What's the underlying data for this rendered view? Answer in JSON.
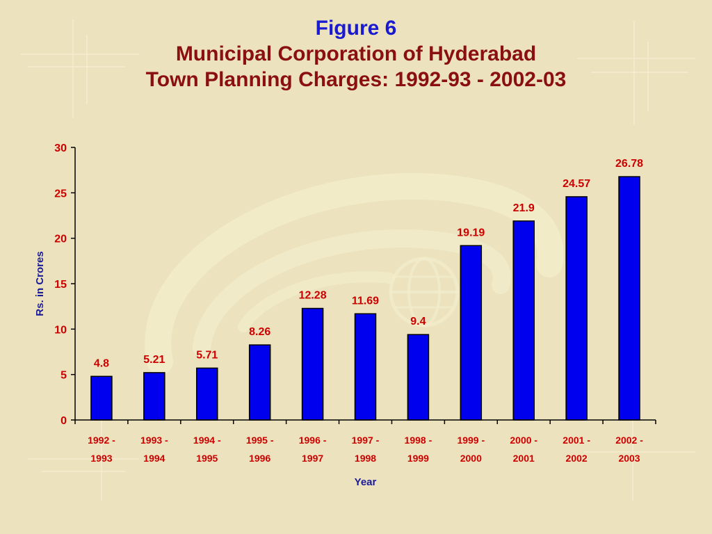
{
  "header": {
    "figure_label": "Figure 6",
    "title_line1": "Municipal Corporation of Hyderabad",
    "title_line2": "Town Planning Charges: 1992-93 - 2002-03"
  },
  "colors": {
    "background": "#ece2bd",
    "bar_fill": "#0000ee",
    "value_labels": "#cc0000",
    "axis_titles": "#1a1a99",
    "figure_label": "#1a1ad0",
    "title": "#8a1010"
  },
  "chart_data": {
    "type": "bar",
    "title": "Municipal Corporation of Hyderabad Town Planning Charges: 1992-93 - 2002-03",
    "xlabel": "Year",
    "ylabel": "Rs. in Crores",
    "ylim": [
      0,
      30
    ],
    "yticks": [
      0,
      5,
      10,
      15,
      20,
      25,
      30
    ],
    "grid": false,
    "legend": "none",
    "categories": [
      [
        "1992 -",
        "1993"
      ],
      [
        "1993 -",
        "1994"
      ],
      [
        "1994 -",
        "1995"
      ],
      [
        "1995 -",
        "1996"
      ],
      [
        "1996 -",
        "1997"
      ],
      [
        "1997 -",
        "1998"
      ],
      [
        "1998 -",
        "1999"
      ],
      [
        "1999 -",
        "2000"
      ],
      [
        "2000 -",
        "2001"
      ],
      [
        "2001 -",
        "2002"
      ],
      [
        "2002 -",
        "2003"
      ]
    ],
    "values": [
      4.8,
      5.21,
      5.71,
      8.26,
      12.28,
      11.69,
      9.4,
      19.19,
      21.9,
      24.57,
      26.78
    ],
    "value_labels": [
      "4.8",
      "5.21",
      "5.71",
      "8.26",
      "12.28",
      "11.69",
      "9.4",
      "19.19",
      "21.9",
      "24.57",
      "26.78"
    ]
  }
}
